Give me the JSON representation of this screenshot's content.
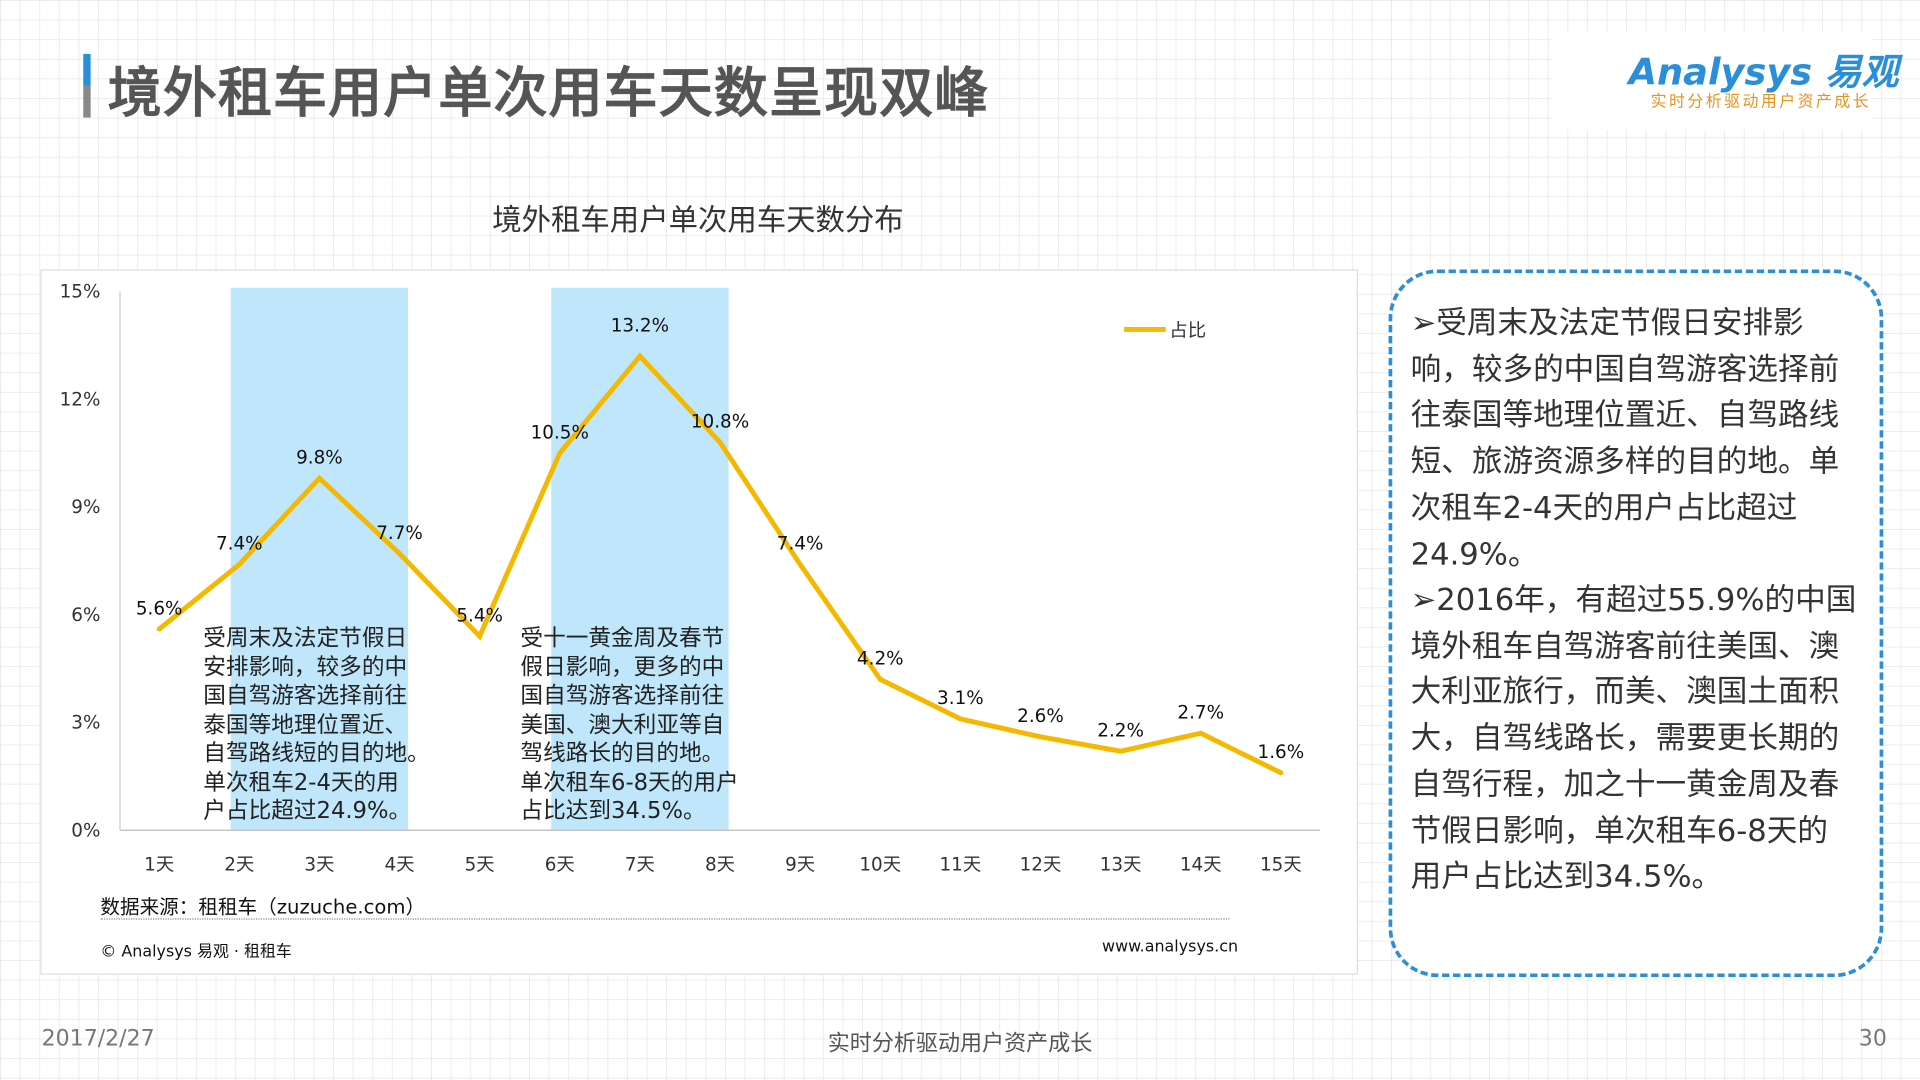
{
  "header": {
    "title": "境外租车用户单次用车天数呈现双峰",
    "logo_text": "Analysys 易观",
    "logo_tagline": "实时分析驱动用户资产成长"
  },
  "chart_data": {
    "type": "line",
    "title": "境外租车用户单次用车天数分布",
    "categories": [
      "1天",
      "2天",
      "3天",
      "4天",
      "5天",
      "6天",
      "7天",
      "8天",
      "9天",
      "10天",
      "11天",
      "12天",
      "13天",
      "14天",
      "15天"
    ],
    "series": [
      {
        "name": "占比",
        "values": [
          5.6,
          7.4,
          9.8,
          7.7,
          5.4,
          10.5,
          13.2,
          10.8,
          7.4,
          4.2,
          3.1,
          2.6,
          2.2,
          2.7,
          1.6
        ],
        "color": "#f5b800"
      }
    ],
    "data_labels": [
      "5.6%",
      "7.4%",
      "9.8%",
      "7.7%",
      "5.4%",
      "10.5%",
      "13.2%",
      "10.8%",
      "7.4%",
      "4.2%",
      "3.1%",
      "2.6%",
      "2.2%",
      "2.7%",
      "1.6%"
    ],
    "yticks": [
      "0%",
      "3%",
      "6%",
      "9%",
      "12%",
      "15%"
    ],
    "ylim": [
      0,
      15
    ],
    "legend": "top-right",
    "highlight_ranges": [
      [
        "2天",
        "4天"
      ],
      [
        "6天",
        "8天"
      ]
    ],
    "highlight_color": "#bfe6fa",
    "annotations": [
      "受周末及法定节假日\n安排影响，较多的中\n国自驾游客选择前往\n泰国等地理位置近、\n自驾路线短的目的地。\n单次租车2-4天的用\n户占比超过24.9%。",
      "受十一黄金周及春节\n假日影响，更多的中\n国自驾游客选择前往\n美国、澳大利亚等自\n驾线路长的目的地。\n单次租车6-8天的用户\n占比达到34.5%。"
    ]
  },
  "source": "数据来源：租租车（zuzuche.com）",
  "copyright": "© Analysys 易观 · 租租车",
  "website": "www.analysys.cn",
  "sidebar": {
    "bullets": [
      "受周末及法定节假日安排影响，较多的中国自驾游客选择前往泰国等地理位置近、自驾路线短、旅游资源多样的目的地。单次租车2-4天的用户占比超过24.9%。",
      "2016年，有超过55.9%的中国境外租车自驾游客前往美国、澳大利亚旅行，而美、澳国土面积大，自驾线路长，需要更长期的自驾行程，加之十一黄金周及春节假日影响，单次租车6-8天的用户占比达到34.5%。"
    ]
  },
  "footer": {
    "date": "2017/2/27",
    "slogan": "实时分析驱动用户资产成长",
    "page": "30"
  }
}
